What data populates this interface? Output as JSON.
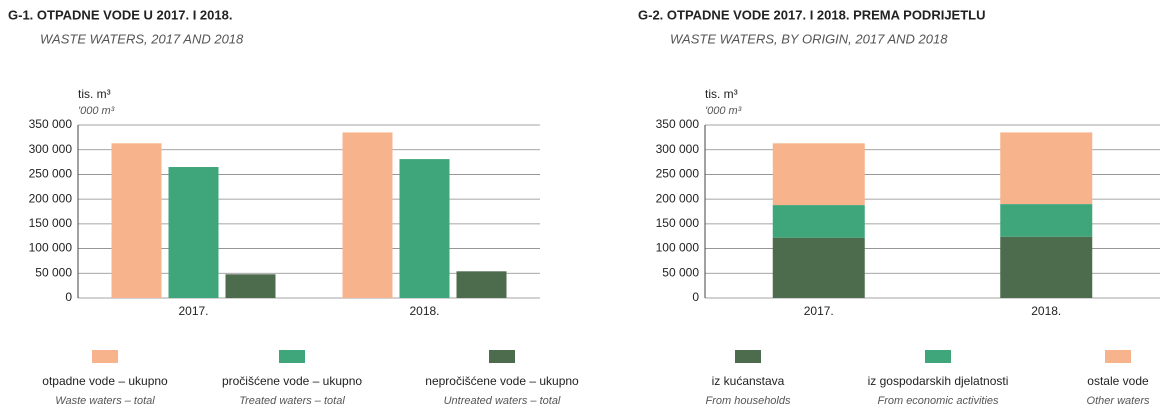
{
  "chart_data": [
    {
      "type": "bar",
      "title": "G-1. OTPADNE VODE U 2017. I 2018.",
      "subtitle": "WASTE WATERS, 2017 AND 2018",
      "y_label": "tis. m³",
      "y_label_en": "'000 m³",
      "categories": [
        "2017.",
        "2018."
      ],
      "series": [
        {
          "name": "otpadne vode – ukupno",
          "name_en": "Waste waters – total",
          "color": "#f7b48c",
          "values": [
            313000,
            335000
          ]
        },
        {
          "name": "pročišćene vode – ukupno",
          "name_en": "Treated waters – total",
          "color": "#3fa57a",
          "values": [
            265000,
            281000
          ]
        },
        {
          "name": "nepročišćene vode – ukupno",
          "name_en": "Untreated waters – total",
          "color": "#4d6b4d",
          "values": [
            48000,
            54000
          ]
        }
      ],
      "ylim": [
        0,
        350000
      ],
      "yticks": [
        0,
        {
          "value": 50000,
          "label": "50 000"
        },
        {
          "value": 100000,
          "label": "100 000"
        },
        {
          "value": 150000,
          "label": "150 000"
        },
        {
          "value": 200000,
          "label": "200 000"
        },
        {
          "value": 250000,
          "label": "250 000"
        },
        {
          "value": 300000,
          "label": "300 000"
        },
        {
          "value": 350000,
          "label": "350 000"
        }
      ],
      "grid": true,
      "stacked": false
    },
    {
      "type": "bar",
      "title": "G-2. OTPADNE VODE 2017. I 2018. PREMA PODRIJETLU",
      "subtitle": "WASTE WATERS, BY ORIGIN, 2017 AND 2018",
      "y_label": "tis. m³",
      "y_label_en": "'000 m³",
      "categories": [
        "2017.",
        "2018."
      ],
      "series": [
        {
          "name": "iz kućanstava",
          "name_en": "From households",
          "color": "#4d6b4d",
          "values": [
            122000,
            124000
          ]
        },
        {
          "name": "iz gospodarskih djelatnosti",
          "name_en": "From economic activities",
          "color": "#3fa57a",
          "values": [
            66000,
            66000
          ]
        },
        {
          "name": "ostale vode",
          "name_en": "Other waters",
          "color": "#f7b48c",
          "values": [
            125000,
            145000
          ]
        }
      ],
      "ylim": [
        0,
        350000
      ],
      "yticks": [
        0,
        {
          "value": 50000,
          "label": "50 000"
        },
        {
          "value": 100000,
          "label": "100 000"
        },
        {
          "value": 150000,
          "label": "150 000"
        },
        {
          "value": 200000,
          "label": "200 000"
        },
        {
          "value": 250000,
          "label": "250 000"
        },
        {
          "value": 300000,
          "label": "300 000"
        },
        {
          "value": 350000,
          "label": "350 000"
        }
      ],
      "grid": true,
      "stacked": true
    }
  ]
}
